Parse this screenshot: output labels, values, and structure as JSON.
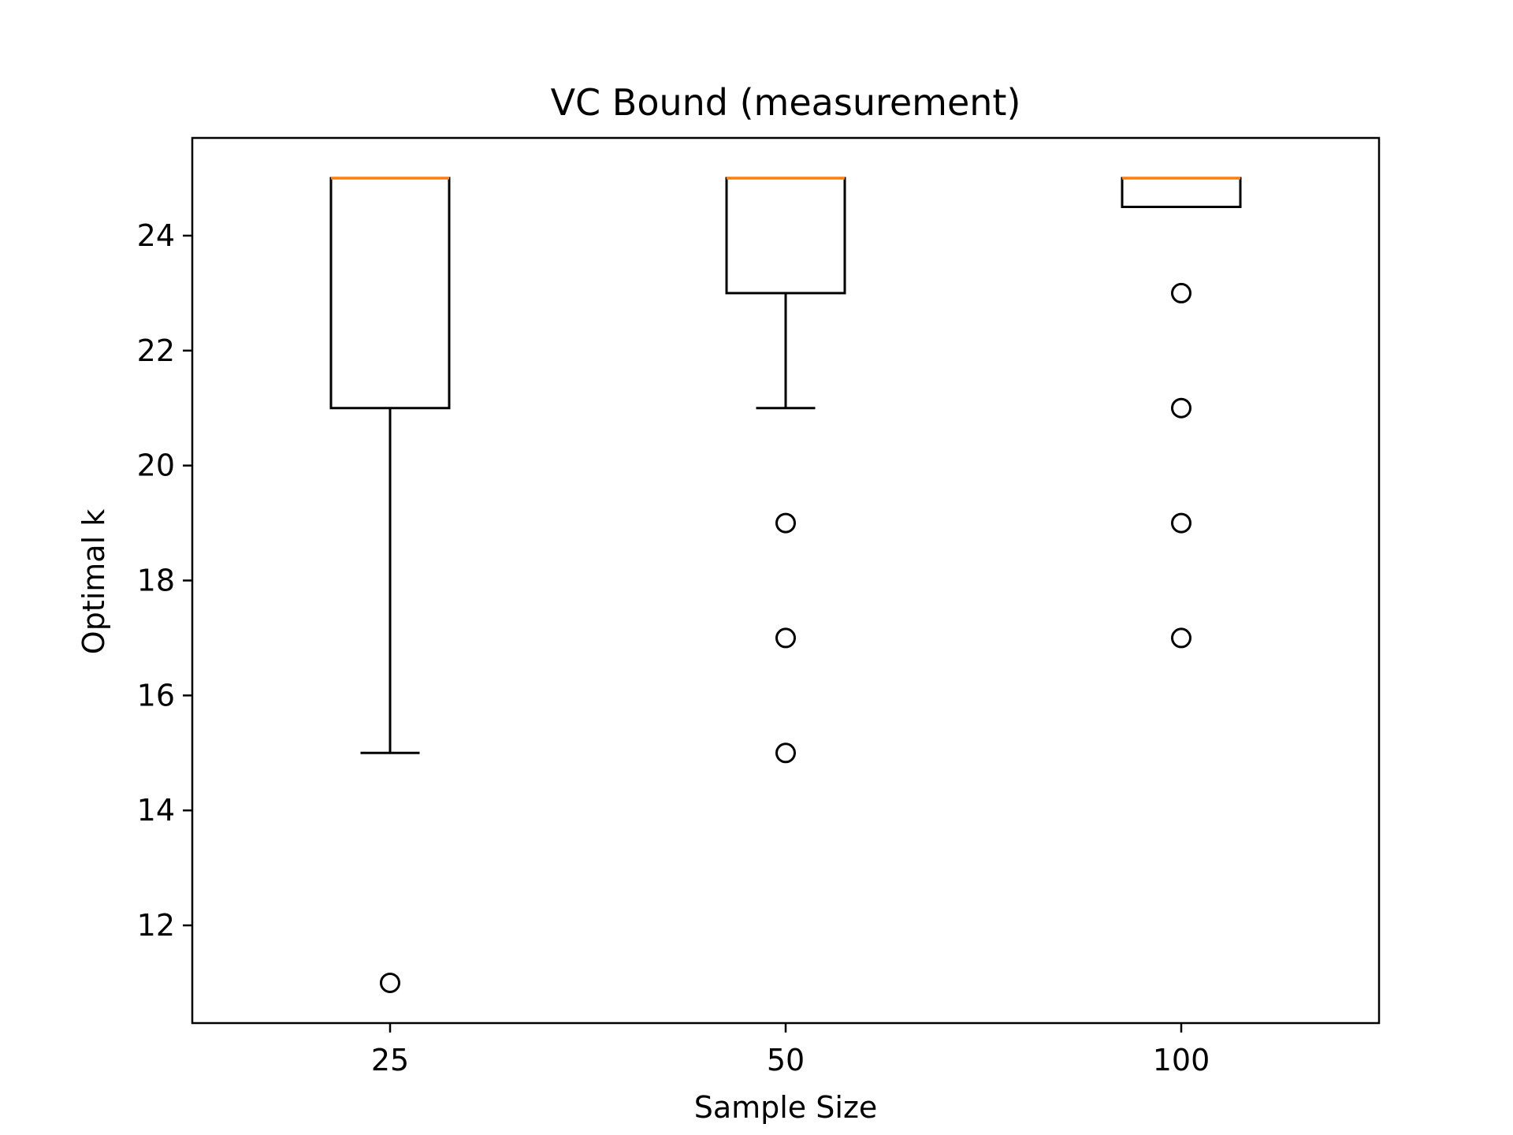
{
  "chart_data": {
    "type": "box",
    "title": "VC Bound (measurement)",
    "xlabel": "Sample Size",
    "ylabel": "Optimal k",
    "categories": [
      "25",
      "50",
      "100"
    ],
    "yticks": [
      12,
      14,
      16,
      18,
      20,
      22,
      24
    ],
    "ylim": [
      10.3,
      25.7
    ],
    "grid": false,
    "boxes": [
      {
        "category": "25",
        "whisker_low": 15,
        "q1": 21,
        "median": 25,
        "q3": 25,
        "whisker_high": 25,
        "outliers": [
          11
        ]
      },
      {
        "category": "50",
        "whisker_low": 21,
        "q1": 23,
        "median": 25,
        "q3": 25,
        "whisker_high": 25,
        "outliers": [
          19,
          17,
          15
        ]
      },
      {
        "category": "100",
        "whisker_low": 24.5,
        "q1": 24.5,
        "median": 25,
        "q3": 25,
        "whisker_high": 25,
        "outliers": [
          23,
          21,
          19,
          17
        ]
      }
    ],
    "colors": {
      "box": "#000000",
      "median": "#ff7f0e",
      "outlier": "#000000"
    }
  }
}
